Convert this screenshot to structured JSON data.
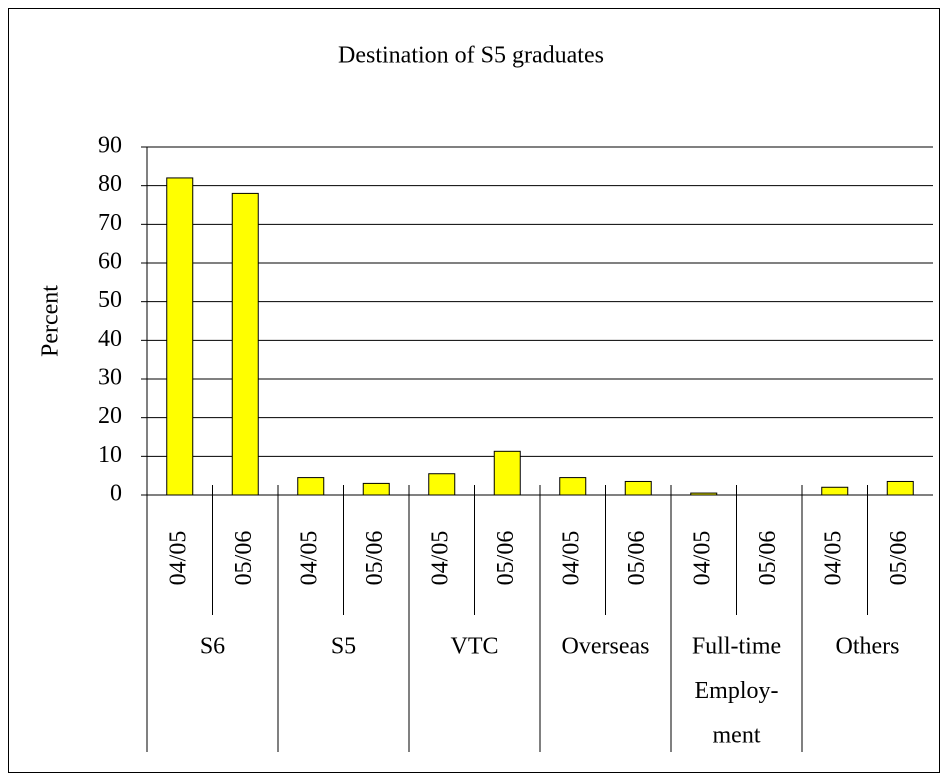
{
  "chart_data": {
    "type": "bar",
    "title": "Destination of S5 graduates",
    "y_label": "Percent",
    "categories": [
      "04/05",
      "05/06",
      "04/05",
      "05/06",
      "04/05",
      "05/06",
      "04/05",
      "05/06",
      "04/05",
      "05/06",
      "04/05",
      "05/06"
    ],
    "groups": [
      [
        "S6"
      ],
      [
        "S5"
      ],
      [
        "VTC"
      ],
      [
        "Overseas"
      ],
      [
        "Full-time",
        "Employ-",
        "ment"
      ],
      [
        "Others"
      ]
    ],
    "values": [
      82,
      78,
      4.5,
      3,
      5.5,
      11.3,
      4.5,
      3.5,
      0.5,
      0,
      2,
      3.5
    ],
    "color": "#ffff00",
    "ylim": [
      0,
      90
    ],
    "yticks": [
      0,
      10,
      20,
      30,
      40,
      50,
      60,
      70,
      80,
      90
    ],
    "grid": true
  }
}
